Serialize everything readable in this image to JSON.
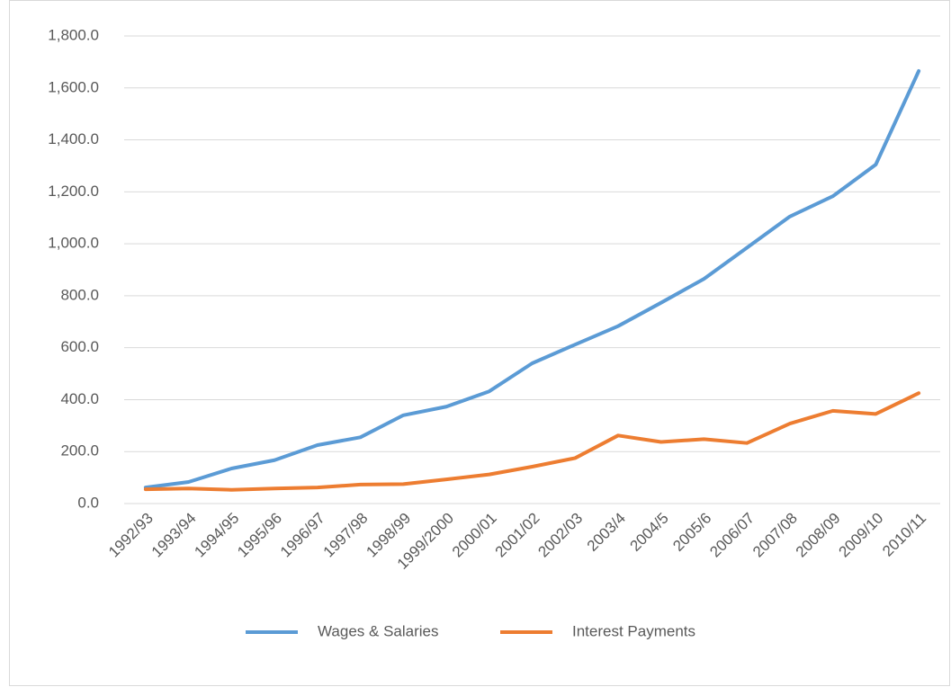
{
  "chart_data": {
    "type": "line",
    "categories": [
      "1992/93",
      "1993/94",
      "1994/95",
      "1995/96",
      "1996/97",
      "1997/98",
      "1998/99",
      "1999/2000",
      "2000/01",
      "2001/02",
      "2002/03",
      "2003/4",
      "2004/5",
      "2005/6",
      "2006/07",
      "2007/08",
      "2008/09",
      "2009/10",
      "2010/11"
    ],
    "series": [
      {
        "name": "Wages & Salaries",
        "color": "#5b9bd5",
        "values": [
          62,
          83,
          135,
          167,
          225,
          255,
          340,
          373,
          432,
          540,
          612,
          683,
          773,
          865,
          985,
          1105,
          1183,
          1305,
          1665
        ]
      },
      {
        "name": "Interest Payments",
        "color": "#ed7d31",
        "values": [
          55,
          58,
          53,
          58,
          62,
          73,
          75,
          93,
          112,
          142,
          175,
          262,
          237,
          248,
          233,
          308,
          357,
          345,
          425
        ]
      }
    ],
    "ylim": [
      0,
      1800
    ],
    "yticks": [
      {
        "value": 0,
        "label": "0.0"
      },
      {
        "value": 200,
        "label": "200.0"
      },
      {
        "value": 400,
        "label": "400.0"
      },
      {
        "value": 600,
        "label": "600.0"
      },
      {
        "value": 800,
        "label": "800.0"
      },
      {
        "value": 1000,
        "label": "1,000.0"
      },
      {
        "value": 1200,
        "label": "1,200.0"
      },
      {
        "value": 1400,
        "label": "1,400.0"
      },
      {
        "value": 1600,
        "label": "1,600.0"
      },
      {
        "value": 1800,
        "label": "1,800.0"
      }
    ],
    "grid": true,
    "legend": "bottom"
  }
}
